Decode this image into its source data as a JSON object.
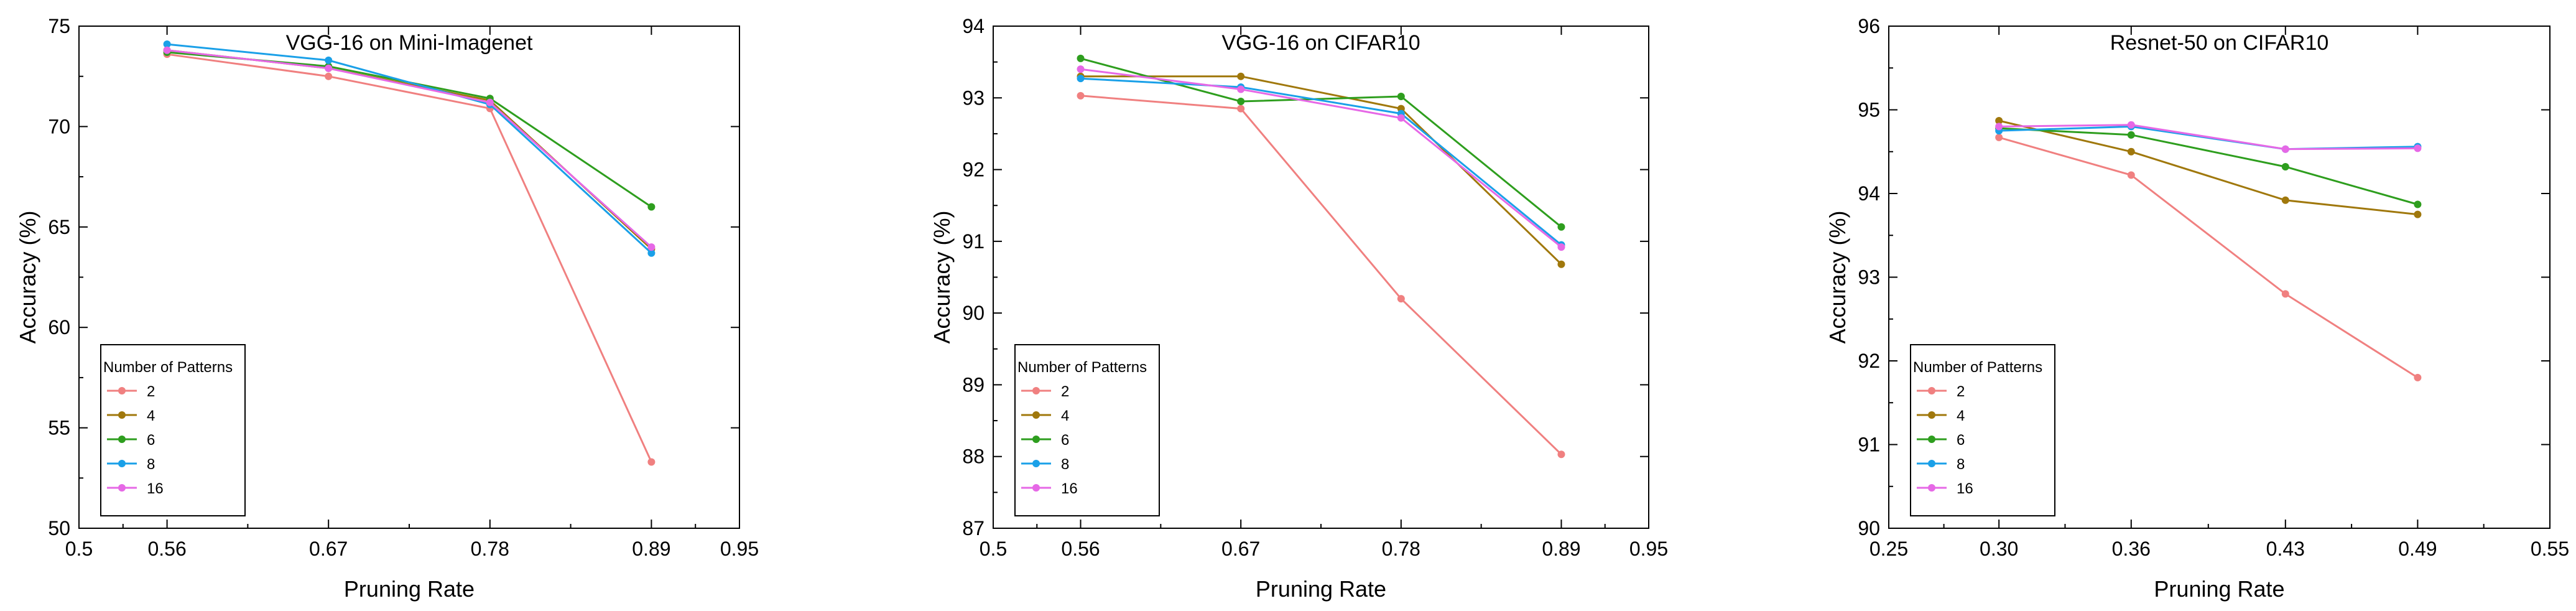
{
  "chart_data": [
    {
      "type": "line",
      "title": "VGG-16 on Mini-Imagenet",
      "xlabel": "Pruning Rate",
      "ylabel": "Accuracy (%)",
      "xlim": [
        0.5,
        0.95
      ],
      "ylim": [
        50,
        75
      ],
      "xticks": [
        0.5,
        0.56,
        0.67,
        0.78,
        0.89,
        0.95
      ],
      "xtick_labels": [
        "0.5",
        "0.56",
        "0.67",
        "0.78",
        "0.89",
        "0.95"
      ],
      "yticks": [
        50,
        55,
        60,
        65,
        70,
        75
      ],
      "ytick_labels": [
        "50",
        "55",
        "60",
        "65",
        "70",
        "75"
      ],
      "grid": false,
      "legend_title": "Number of Patterns",
      "legend_position": "bottom-left",
      "x": [
        0.56,
        0.67,
        0.78,
        0.89
      ],
      "series": [
        {
          "name": "2",
          "color": "#f08080",
          "values": [
            73.6,
            72.5,
            70.9,
            53.3
          ]
        },
        {
          "name": "4",
          "color": "#a0780c",
          "values": [
            73.8,
            72.9,
            71.3,
            63.9
          ]
        },
        {
          "name": "6",
          "color": "#2e9e1e",
          "values": [
            73.7,
            73.0,
            71.4,
            66.0
          ]
        },
        {
          "name": "8",
          "color": "#1aa0e8",
          "values": [
            74.1,
            73.3,
            71.1,
            63.7
          ]
        },
        {
          "name": "16",
          "color": "#e668e6",
          "values": [
            73.8,
            72.9,
            71.2,
            64.0
          ]
        }
      ]
    },
    {
      "type": "line",
      "title": "VGG-16 on CIFAR10",
      "xlabel": "Pruning Rate",
      "ylabel": "Accuracy (%)",
      "xlim": [
        0.5,
        0.95
      ],
      "ylim": [
        87,
        94
      ],
      "xticks": [
        0.5,
        0.56,
        0.67,
        0.78,
        0.89,
        0.95
      ],
      "xtick_labels": [
        "0.5",
        "0.56",
        "0.67",
        "0.78",
        "0.89",
        "0.95"
      ],
      "yticks": [
        87,
        88,
        89,
        90,
        91,
        92,
        93,
        94
      ],
      "ytick_labels": [
        "87",
        "88",
        "89",
        "90",
        "91",
        "92",
        "93",
        "94"
      ],
      "grid": false,
      "legend_title": "Number of Patterns",
      "legend_position": "bottom-left",
      "x": [
        0.56,
        0.67,
        0.78,
        0.89
      ],
      "series": [
        {
          "name": "2",
          "color": "#f08080",
          "values": [
            93.03,
            92.85,
            90.2,
            88.03
          ]
        },
        {
          "name": "4",
          "color": "#a0780c",
          "values": [
            93.3,
            93.3,
            92.85,
            90.68
          ]
        },
        {
          "name": "6",
          "color": "#2e9e1e",
          "values": [
            93.55,
            92.95,
            93.02,
            91.2
          ]
        },
        {
          "name": "8",
          "color": "#1aa0e8",
          "values": [
            93.27,
            93.15,
            92.78,
            90.95
          ]
        },
        {
          "name": "16",
          "color": "#e668e6",
          "values": [
            93.4,
            93.12,
            92.72,
            90.92
          ]
        }
      ]
    },
    {
      "type": "line",
      "title": "Resnet-50 on CIFAR10",
      "xlabel": "Pruning Rate",
      "ylabel": "Accuracy (%)",
      "xlim": [
        0.25,
        0.55
      ],
      "ylim": [
        90,
        96
      ],
      "xticks": [
        0.25,
        0.3,
        0.36,
        0.43,
        0.49,
        0.55
      ],
      "xtick_labels": [
        "0.25",
        "0.30",
        "0.36",
        "0.43",
        "0.49",
        "0.55"
      ],
      "yticks": [
        90,
        91,
        92,
        93,
        94,
        95,
        96
      ],
      "ytick_labels": [
        "90",
        "91",
        "92",
        "93",
        "94",
        "95",
        "96"
      ],
      "grid": false,
      "legend_title": "Number of Patterns",
      "legend_position": "bottom-left",
      "x": [
        0.3,
        0.36,
        0.43,
        0.49
      ],
      "series": [
        {
          "name": "2",
          "color": "#f08080",
          "values": [
            94.67,
            94.22,
            92.8,
            91.8
          ]
        },
        {
          "name": "4",
          "color": "#a0780c",
          "values": [
            94.87,
            94.5,
            93.92,
            93.75
          ]
        },
        {
          "name": "6",
          "color": "#2e9e1e",
          "values": [
            94.78,
            94.7,
            94.32,
            93.87
          ]
        },
        {
          "name": "8",
          "color": "#1aa0e8",
          "values": [
            94.75,
            94.8,
            94.53,
            94.56
          ]
        },
        {
          "name": "16",
          "color": "#e668e6",
          "values": [
            94.8,
            94.82,
            94.53,
            94.54
          ]
        }
      ]
    }
  ]
}
